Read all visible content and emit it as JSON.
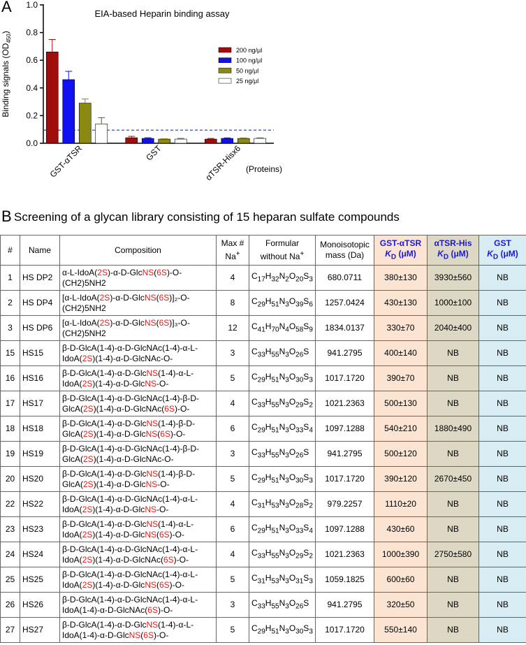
{
  "panel_labels": [
    "A",
    "B"
  ],
  "chart_data": {
    "type": "bar",
    "title": "EIA-based Heparin binding assay",
    "ylabel": {
      "text": "Binding signals (OD",
      "sub": "450",
      "end": ")"
    },
    "annotation": "(Proteins)",
    "categories": [
      "GST-αTSR",
      "GST",
      "αTSR-Hisx6"
    ],
    "series": [
      {
        "name": "200 ng/μl",
        "color": "#a10d0d",
        "values": [
          0.66,
          0.04,
          0.03
        ],
        "errors": [
          0.09,
          0.01,
          0.005
        ]
      },
      {
        "name": "100 ng/μl",
        "color": "#1010f0",
        "values": [
          0.46,
          0.035,
          0.035
        ],
        "errors": [
          0.06,
          0.005,
          0.004
        ]
      },
      {
        "name": "50 ng/μl",
        "color": "#8a8a12",
        "values": [
          0.29,
          0.03,
          0.035
        ],
        "errors": [
          0.03,
          0.003,
          0.004
        ]
      },
      {
        "name": "25 ng/μl",
        "color": "#ffffff",
        "values": [
          0.14,
          0.03,
          0.035
        ],
        "errors": [
          0.045,
          0.005,
          0.004
        ]
      }
    ],
    "reference_line": 0.095,
    "ylim": [
      0,
      1.0
    ],
    "yticks": [
      {
        "value": 0,
        "label": "0.0"
      },
      0.2,
      0.4,
      0.6,
      0.8,
      {
        "value": 1.0,
        "label": "1.0"
      }
    ],
    "legend": "upper right"
  },
  "table": {
    "title": "Screening of a glycan library consisting of 15 heparan sulfate compounds",
    "headers": [
      "#",
      "Name",
      "Composition",
      {
        "text": "Max # Na",
        "sup": "+"
      },
      {
        "text": "Formular without Na",
        "sup": "+"
      },
      "Monoisotopic mass (Da)",
      {
        "text": "GST-αTSR",
        "k": "K",
        "sub": "D",
        "unit": "(μM)"
      },
      {
        "text": "αTSR-His",
        "k": "K",
        "sub": "D",
        "unit": "(μM)"
      },
      {
        "text": "GST",
        "k": "K",
        "sub": "D",
        "unit": "(μM)"
      }
    ],
    "rows": [
      {
        "id": 1,
        "name": "HS DP2",
        "composition": [
          "α-L-IdoA(",
          "2S",
          ")-α-D-Glc",
          "NS",
          "(",
          "6S",
          ")-O-(CH2)5NH2"
        ],
        "max_na": 4,
        "formula": [
          "C",
          "17",
          "H",
          "32",
          "N",
          "2",
          "O",
          "20",
          "S",
          "3"
        ],
        "mass": "680.0711",
        "kd_gst_atsr": "380±130",
        "kd_atsr_his": "3930±560",
        "kd_gst": "NB"
      },
      {
        "id": 2,
        "name": "HS DP4",
        "composition": [
          "[α-L-IdoA(",
          "2S",
          ")-α-D-Glc",
          "NS",
          "(",
          "6S",
          ")]₂-O-(CH2)5NH2"
        ],
        "max_na": 8,
        "formula": [
          "C",
          "29",
          "H",
          "51",
          "N",
          "3",
          "O",
          "39",
          "S",
          "6"
        ],
        "mass": "1257.0424",
        "kd_gst_atsr": "430±130",
        "kd_atsr_his": "1000±100",
        "kd_gst": "NB"
      },
      {
        "id": 3,
        "name": "HS DP6",
        "composition": [
          "[α-L-IdoA(",
          "2S",
          ")-α-D-Glc",
          "NS",
          "(",
          "6S",
          ")]₃-O-(CH2)5NH2"
        ],
        "max_na": 12,
        "formula": [
          "C",
          "41",
          "H",
          "70",
          "N",
          "4",
          "O",
          "58",
          "S",
          "9"
        ],
        "mass": "1834.0137",
        "kd_gst_atsr": "330±70",
        "kd_atsr_his": "2040±400",
        "kd_gst": "NB"
      },
      {
        "id": 15,
        "name": "HS15",
        "composition": [
          "β-D-GlcA(1-4)-α-D-GlcNAc(1-4)-α-L-IdoA(",
          "2S",
          ")(1-4)-α-D-GlcNAc-O-"
        ],
        "max_na": 3,
        "formula": [
          "C",
          "33",
          "H",
          "55",
          "N",
          "3",
          "O",
          "26",
          "S"
        ],
        "mass": "941.2795",
        "kd_gst_atsr": "400±140",
        "kd_atsr_his": "NB",
        "kd_gst": "NB"
      },
      {
        "id": 16,
        "name": "HS16",
        "composition": [
          "β-D-GlcA(1-4)-α-D-Glc",
          "NS",
          "(1-4)-α-L-IdoA(",
          "2S",
          ")(1-4)-α-D-Glc",
          "NS",
          "-O-"
        ],
        "max_na": 5,
        "formula": [
          "C",
          "29",
          "H",
          "51",
          "N",
          "3",
          "O",
          "30",
          "S",
          "3"
        ],
        "mass": "1017.1720",
        "kd_gst_atsr": "390±70",
        "kd_atsr_his": "NB",
        "kd_gst": "NB"
      },
      {
        "id": 17,
        "name": "HS17",
        "composition": [
          "β-D-GlcA(1-4)-α-D-GlcNAc(1-4)-β-D-GlcA(",
          "2S",
          ")(1-4)-α-D-GlcNAc(",
          "6S",
          ")-O-"
        ],
        "max_na": 4,
        "formula": [
          "C",
          "33",
          "H",
          "55",
          "N",
          "3",
          "O",
          "29",
          "S",
          "2"
        ],
        "mass": "1021.2363",
        "kd_gst_atsr": "500±130",
        "kd_atsr_his": "NB",
        "kd_gst": "NB"
      },
      {
        "id": 18,
        "name": "HS18",
        "composition": [
          "β-D-GlcA(1-4)-α-D-Glc",
          "NS",
          "(1-4)-β-D-GlcA(",
          "2S",
          ")(1-4)-α-D-Glc",
          "NS",
          "(",
          "6S",
          ")-O-"
        ],
        "max_na": 6,
        "formula": [
          "C",
          "29",
          "H",
          "51",
          "N",
          "3",
          "O",
          "33",
          "S",
          "4"
        ],
        "mass": "1097.1288",
        "kd_gst_atsr": "540±210",
        "kd_atsr_his": "1880±490",
        "kd_gst": "NB"
      },
      {
        "id": 19,
        "name": "HS19",
        "composition": [
          "β-D-GlcA(1-4)-α-D-GlcNAc(1-4)-β-D-GlcA(",
          "2S",
          ")(1-4)-α-D-GlcNAc-O-"
        ],
        "max_na": 3,
        "formula": [
          "C",
          "33",
          "H",
          "55",
          "N",
          "3",
          "O",
          "26",
          "S"
        ],
        "mass": "941.2795",
        "kd_gst_atsr": "500±120",
        "kd_atsr_his": "NB",
        "kd_gst": "NB"
      },
      {
        "id": 20,
        "name": "HS20",
        "composition": [
          "β-D-GlcA(1-4)-α-D-Glc",
          "NS",
          "(1-4)-β-D-GlcA(",
          "2S",
          ")(1-4)-α-D-Glc",
          "NS",
          "-O-"
        ],
        "max_na": 5,
        "formula": [
          "C",
          "29",
          "H",
          "51",
          "N",
          "3",
          "O",
          "30",
          "S",
          "3"
        ],
        "mass": "1017.1720",
        "kd_gst_atsr": "390±120",
        "kd_atsr_his": "2670±450",
        "kd_gst": "NB"
      },
      {
        "id": 22,
        "name": "HS22",
        "composition": [
          "β-D-GlcA(1-4)-α-D-GlcNAc(1-4)-α-L-IdoA(",
          "2S",
          ")(1-4)-α-D-Glc",
          "NS",
          "-O-"
        ],
        "max_na": 4,
        "formula": [
          "C",
          "31",
          "H",
          "53",
          "N",
          "3",
          "O",
          "28",
          "S",
          "2"
        ],
        "mass": "979.2257",
        "kd_gst_atsr": "1110±20",
        "kd_atsr_his": "NB",
        "kd_gst": "NB"
      },
      {
        "id": 23,
        "name": "HS23",
        "composition": [
          "β-D-GlcA(1-4)-α-D-Glc",
          "NS",
          "(1-4)-α-L-IdoA(",
          "2S",
          ")(1-4)-α-D-Glc",
          "NS",
          "(",
          "6S",
          ")-O-"
        ],
        "max_na": 6,
        "formula": [
          "C",
          "29",
          "H",
          "51",
          "N",
          "3",
          "O",
          "33",
          "S",
          "4"
        ],
        "mass": "1097.1288",
        "kd_gst_atsr": "430±60",
        "kd_atsr_his": "NB",
        "kd_gst": "NB"
      },
      {
        "id": 24,
        "name": "HS24",
        "composition": [
          "β-D-GlcA(1-4)-α-D-GlcNAc(1-4)-α-L-IdoA(",
          "2S",
          ")(1-4)-α-D-GlcNAc(",
          "6S",
          ")-O-"
        ],
        "max_na": 4,
        "formula": [
          "C",
          "33",
          "H",
          "55",
          "N",
          "3",
          "O",
          "29",
          "S",
          "2"
        ],
        "mass": "1021.2363",
        "kd_gst_atsr": "1000±390",
        "kd_atsr_his": "2750±580",
        "kd_gst": "NB"
      },
      {
        "id": 25,
        "name": "HS25",
        "composition": [
          "β-D-GlcA(1-4)-α-D-GlcNAc(1-4)-α-L-IdoA(",
          "2S",
          ")(1-4)-α-D-Glc",
          "NS",
          "(",
          "6S",
          ")-O-"
        ],
        "max_na": 5,
        "formula": [
          "C",
          "31",
          "H",
          "53",
          "N",
          "3",
          "O",
          "31",
          "S",
          "3"
        ],
        "mass": "1059.1825",
        "kd_gst_atsr": "600±60",
        "kd_atsr_his": "NB",
        "kd_gst": "NB"
      },
      {
        "id": 26,
        "name": "HS26",
        "composition": [
          "β-D-GlcA(1-4)-α-D-GlcNAc(1-4)-α-L-IdoA(1-4)-α-D-GlcNAc(",
          "6S",
          ")-O-"
        ],
        "max_na": 3,
        "formula": [
          "C",
          "33",
          "H",
          "55",
          "N",
          "3",
          "O",
          "26",
          "S"
        ],
        "mass": "941.2795",
        "kd_gst_atsr": "320±50",
        "kd_atsr_his": "NB",
        "kd_gst": "NB"
      },
      {
        "id": 27,
        "name": "HS27",
        "composition": [
          "β-D-GlcA(1-4)-α-D-Glc",
          "NS",
          "(1-4)-α-L-IdoA(1-4)-α-D-Glc",
          "NS",
          "(",
          "6S",
          ")-O-"
        ],
        "max_na": 5,
        "formula": [
          "C",
          "29",
          "H",
          "51",
          "N",
          "3",
          "O",
          "30",
          "S",
          "3"
        ],
        "mass": "1017.1720",
        "kd_gst_atsr": "550±140",
        "kd_atsr_his": "NB",
        "kd_gst": "NB"
      }
    ]
  }
}
